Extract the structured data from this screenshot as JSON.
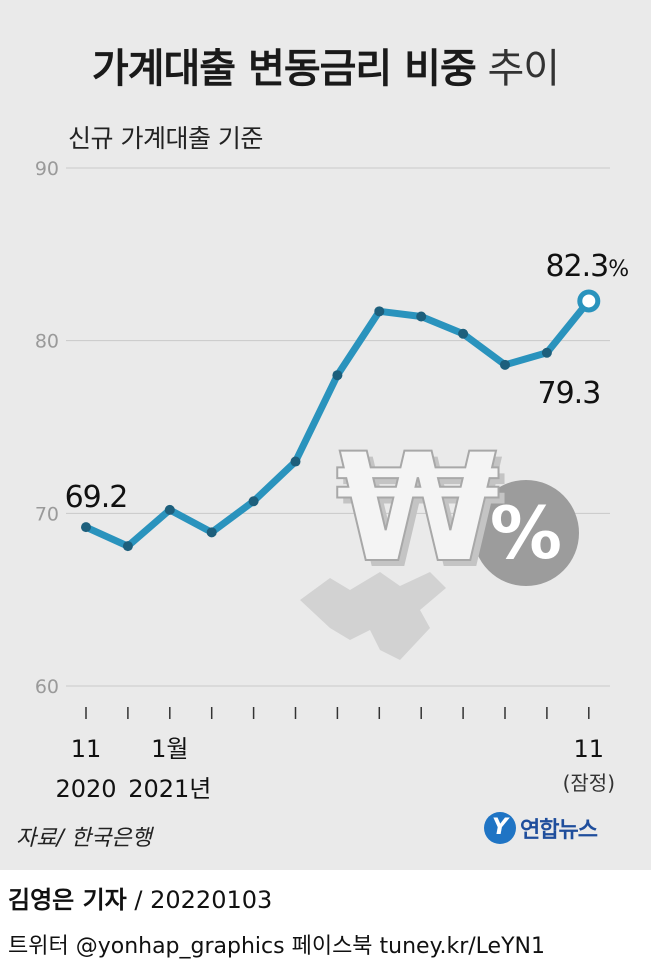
{
  "title": {
    "bold": "가계대출 변동금리 비중",
    "light": "추이"
  },
  "subtitle": "신규 가계대출 기준",
  "chart_data": {
    "type": "line",
    "title": "가계대출 변동금리 비중 추이",
    "subtitle": "신규 가계대출 기준",
    "unit": "%",
    "ylim": [
      60,
      90
    ],
    "yticks": [
      "60",
      "70",
      "80",
      "90"
    ],
    "grid": true,
    "x": [
      "2020-11",
      "2020-12",
      "2021-01",
      "2021-02",
      "2021-03",
      "2021-04",
      "2021-05",
      "2021-06",
      "2021-07",
      "2021-08",
      "2021-09",
      "2021-10",
      "2021-11"
    ],
    "x_tick_labels": [
      {
        "index": 0,
        "month": "11",
        "year": "2020"
      },
      {
        "index": 2,
        "month": "1월",
        "year": "2021년"
      },
      {
        "index": 12,
        "month": "11",
        "note": "(잠정)"
      }
    ],
    "series": [
      {
        "name": "변동금리 비중",
        "color": "#2a93bd",
        "values": [
          69.2,
          68.1,
          70.2,
          68.9,
          70.7,
          73.0,
          78.0,
          81.7,
          81.4,
          80.4,
          78.6,
          79.3,
          82.3
        ]
      }
    ],
    "labels": [
      {
        "index": 0,
        "text": "69.2"
      },
      {
        "index": 11,
        "text": "79.3"
      },
      {
        "index": 12,
        "text": "82.3",
        "suffix": "%"
      }
    ]
  },
  "illustration": {
    "icon": "won-percent-icon",
    "symbol": "₩",
    "percent": "%"
  },
  "source": "자료/ 한국은행",
  "brand": {
    "icon": "yonhap-logo-icon",
    "glyph": "Y",
    "name": "연합뉴스",
    "color": "#1f4e9c"
  },
  "byline": {
    "name": "김영은 기자",
    "sep": " / ",
    "date": "20220103"
  },
  "social": "트위터 @yonhap_graphics  페이스북 tuney.kr/LeYN1"
}
